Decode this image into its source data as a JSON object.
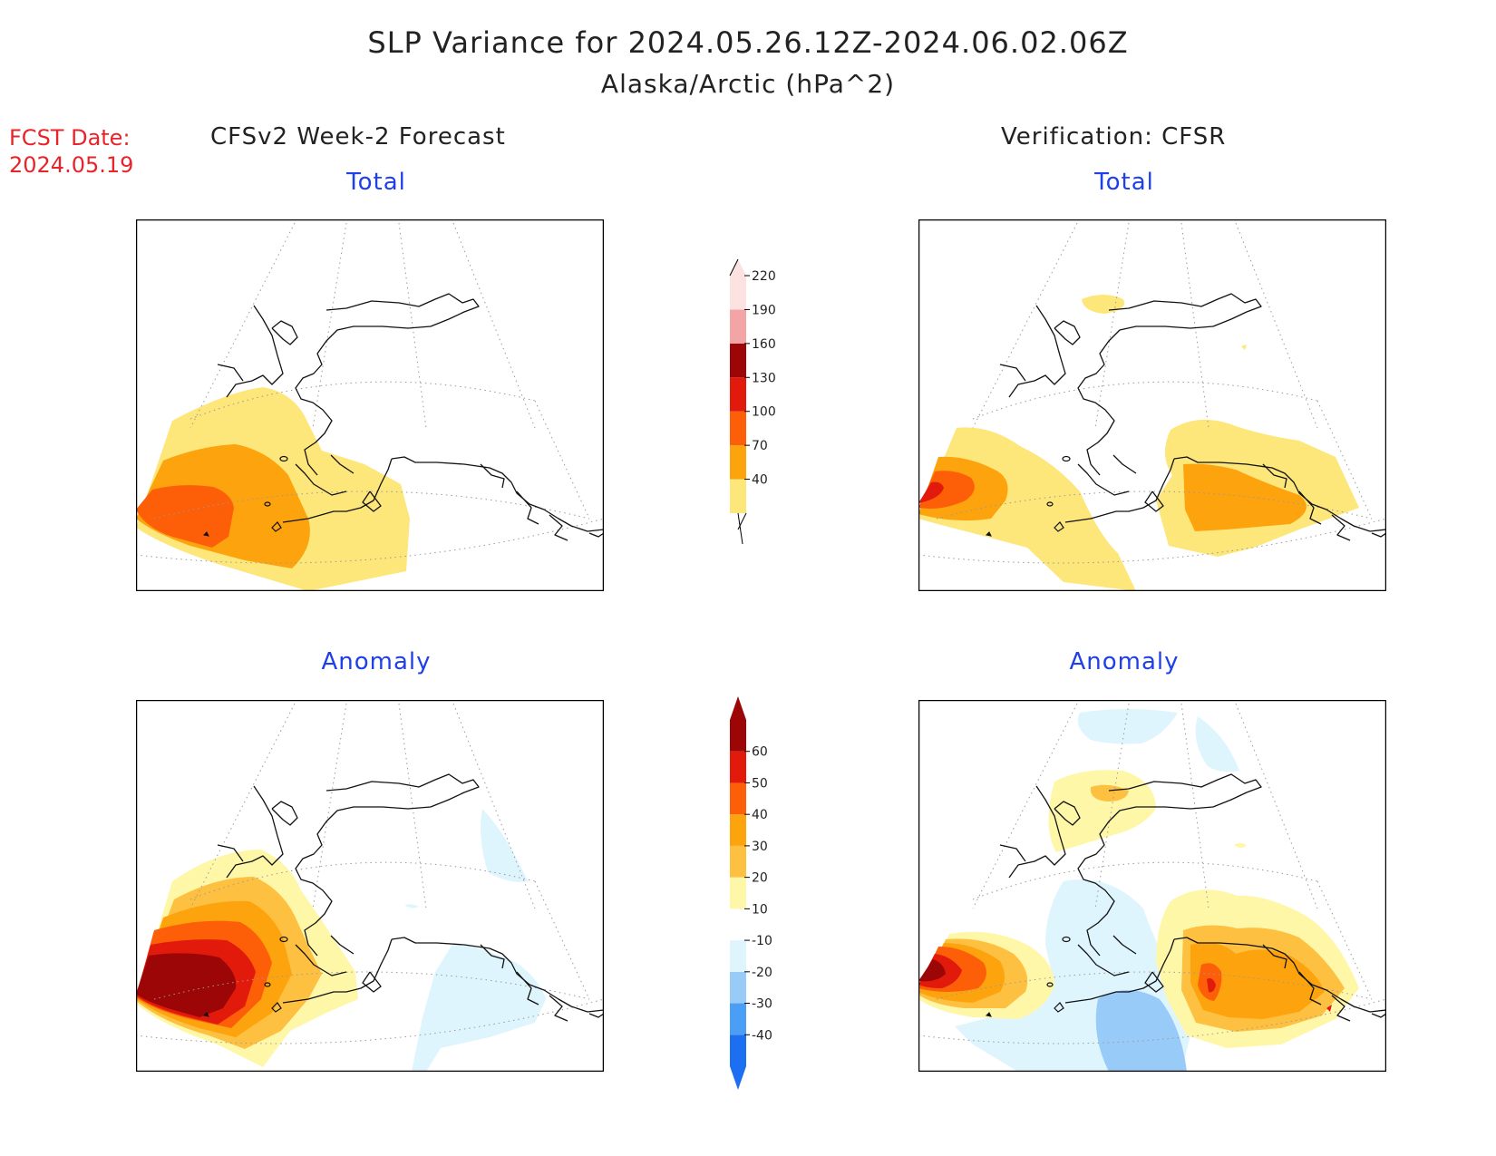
{
  "title": {
    "line1": "SLP Variance for 2024.05.26.12Z-2024.06.02.06Z",
    "line2": "Alaska/Arctic (hPa^2)"
  },
  "forecast_date": {
    "label": "FCST Date:",
    "value": "2024.05.19"
  },
  "columns": {
    "left": "CFSv2 Week-2 Forecast",
    "right": "Verification: CFSR"
  },
  "panels": {
    "total_label": "Total",
    "anomaly_label": "Anomaly"
  },
  "colorbar_total": {
    "labels": [
      "40",
      "70",
      "100",
      "130",
      "160",
      "190",
      "220"
    ],
    "colors": [
      "#fde67a",
      "#fca30e",
      "#fc5f08",
      "#e11a0c",
      "#9c0606",
      "#f3a4a4",
      "#fde2e2"
    ]
  },
  "colorbar_anomaly": {
    "labels": [
      "-40",
      "-30",
      "-20",
      "-10",
      "10",
      "20",
      "30",
      "40",
      "50",
      "60"
    ],
    "colors": [
      "#1b6ff0",
      "#4a9ef5",
      "#99cbf8",
      "#dff5fe",
      "#ffffff",
      "#fff7a8",
      "#fdc040",
      "#fca30e",
      "#fc5f08",
      "#e11a0c",
      "#9c0606"
    ]
  },
  "map_colors": {
    "c40": "#fde67a",
    "c70": "#fca30e",
    "c100": "#fc5f08",
    "c130": "#e11a0c",
    "c160": "#9c0606",
    "a10": "#fff7a8",
    "a20": "#fdc040",
    "a30": "#fca30e",
    "a40": "#fc5f08",
    "a50": "#e11a0c",
    "a60": "#9c0606",
    "n10": "#dff5fe",
    "n20": "#99cbf8"
  }
}
